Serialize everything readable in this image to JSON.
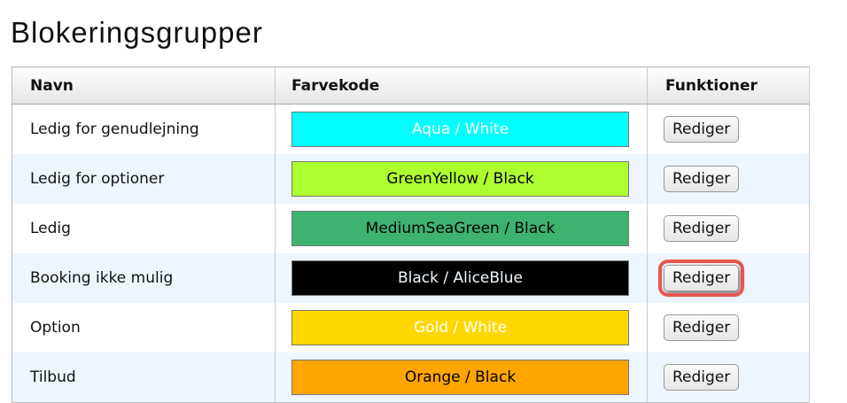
{
  "page": {
    "title": "Blokeringsgrupper"
  },
  "table": {
    "headers": [
      "Navn",
      "Farvekode",
      "Funktioner"
    ],
    "rows": [
      {
        "name": "Ledig for genudlejning",
        "color_label": "Aqua / White",
        "bg": "#00FFFF",
        "fg": "#FFFFFF",
        "action": "Rediger"
      },
      {
        "name": "Ledig for optioner",
        "color_label": "GreenYellow / Black",
        "bg": "#ADFF2F",
        "fg": "#000000",
        "action": "Rediger"
      },
      {
        "name": "Ledig",
        "color_label": "MediumSeaGreen / Black",
        "bg": "#3CB371",
        "fg": "#000000",
        "action": "Rediger"
      },
      {
        "name": "Booking ikke mulig",
        "color_label": "Black / AliceBlue",
        "bg": "#000000",
        "fg": "#F0F8FF",
        "action": "Rediger",
        "highlighted": true
      },
      {
        "name": "Option",
        "color_label": "Gold / White",
        "bg": "#FFD700",
        "fg": "#FFFFFF",
        "action": "Rediger"
      },
      {
        "name": "Tilbud",
        "color_label": "Orange / Black",
        "bg": "#FFA500",
        "fg": "#000000",
        "action": "Rediger"
      }
    ]
  },
  "colors": {
    "highlight": "#e8574f",
    "alt_row": "#edf5ff"
  }
}
